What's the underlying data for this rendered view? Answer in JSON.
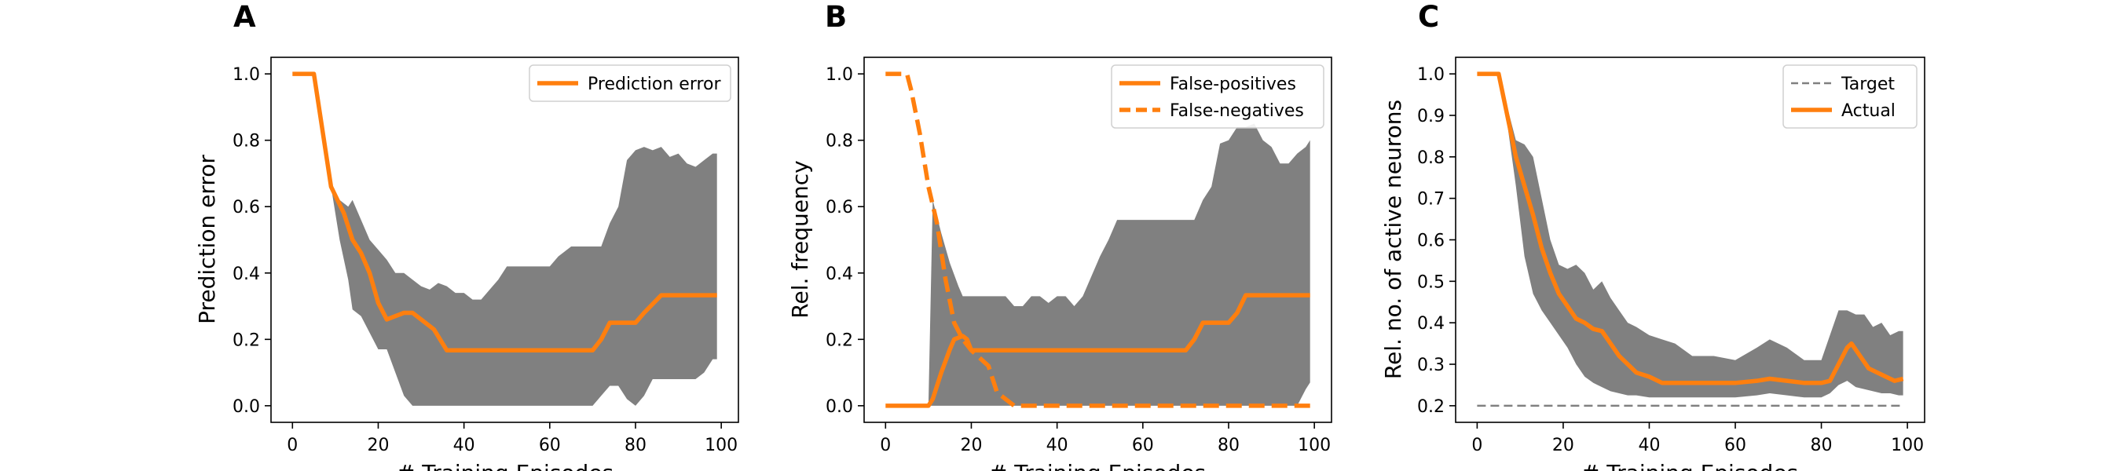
{
  "colors": {
    "series": "#ff7f0e",
    "band": "#808080",
    "target": "#808080",
    "axis": "#000000"
  },
  "chart_data": [
    {
      "panel_letter": "A",
      "type": "line",
      "ylabel": "Prediction error",
      "xlabel": "# Training Episodes",
      "xlim": [
        -5,
        104
      ],
      "ylim": [
        -0.05,
        1.05
      ],
      "xticks": [
        0,
        20,
        40,
        60,
        80,
        100
      ],
      "yticks": [
        0.0,
        0.2,
        0.4,
        0.6,
        0.8,
        1.0
      ],
      "tick_decimals": 1,
      "legend": {
        "position": "upper-right",
        "entries": [
          {
            "label": "Prediction error",
            "style": "solid"
          }
        ]
      },
      "series": [
        {
          "name": "Prediction error",
          "style": "solid",
          "x": [
            0,
            5,
            9,
            12,
            14,
            16,
            18,
            20,
            22,
            24,
            26,
            28,
            30,
            33,
            36,
            40,
            50,
            60,
            70,
            72,
            74,
            76,
            80,
            82,
            86,
            90,
            95,
            99
          ],
          "y": [
            1.0,
            1.0,
            0.66,
            0.58,
            0.5,
            0.46,
            0.4,
            0.31,
            0.26,
            0.27,
            0.28,
            0.28,
            0.26,
            0.23,
            0.167,
            0.167,
            0.167,
            0.167,
            0.167,
            0.2,
            0.25,
            0.25,
            0.25,
            0.28,
            0.333,
            0.333,
            0.333,
            0.333
          ]
        }
      ],
      "band": {
        "x": [
          0,
          5,
          9,
          11,
          13,
          14,
          16,
          18,
          20,
          22,
          24,
          26,
          28,
          30,
          32,
          34,
          36,
          38,
          40,
          42,
          44,
          46,
          48,
          50,
          52,
          54,
          56,
          60,
          62,
          65,
          70,
          72,
          74,
          76,
          78,
          80,
          82,
          84,
          86,
          88,
          90,
          92,
          94,
          96,
          98,
          99
        ],
        "upper": [
          1.0,
          1.0,
          0.66,
          0.62,
          0.6,
          0.62,
          0.56,
          0.5,
          0.47,
          0.44,
          0.4,
          0.4,
          0.38,
          0.36,
          0.35,
          0.37,
          0.36,
          0.34,
          0.34,
          0.32,
          0.32,
          0.35,
          0.38,
          0.42,
          0.42,
          0.42,
          0.42,
          0.42,
          0.45,
          0.48,
          0.48,
          0.48,
          0.55,
          0.6,
          0.74,
          0.77,
          0.78,
          0.77,
          0.78,
          0.75,
          0.76,
          0.73,
          0.72,
          0.74,
          0.76,
          0.76
        ],
        "lower": [
          1.0,
          1.0,
          0.66,
          0.5,
          0.38,
          0.29,
          0.27,
          0.22,
          0.17,
          0.17,
          0.1,
          0.03,
          0.0,
          0.0,
          0.0,
          0.0,
          0.0,
          0.0,
          0.0,
          0.0,
          0.0,
          0.0,
          0.0,
          0.0,
          0.0,
          0.0,
          0.0,
          0.0,
          0.0,
          0.0,
          0.0,
          0.03,
          0.06,
          0.06,
          0.02,
          0.0,
          0.03,
          0.08,
          0.08,
          0.08,
          0.08,
          0.08,
          0.08,
          0.1,
          0.14,
          0.14
        ]
      }
    },
    {
      "panel_letter": "B",
      "type": "line",
      "ylabel": "Rel. frequency",
      "xlabel": "# Training Episodes",
      "xlim": [
        -5,
        104
      ],
      "ylim": [
        -0.05,
        1.05
      ],
      "xticks": [
        0,
        20,
        40,
        60,
        80,
        100
      ],
      "yticks": [
        0.0,
        0.2,
        0.4,
        0.6,
        0.8,
        1.0
      ],
      "tick_decimals": 1,
      "legend": {
        "position": "upper-right",
        "entries": [
          {
            "label": "False-positives",
            "style": "solid"
          },
          {
            "label": "False-negatives",
            "style": "dashed"
          }
        ]
      },
      "series": [
        {
          "name": "False-positives",
          "style": "solid",
          "x": [
            0,
            10,
            11,
            13,
            15,
            16,
            18,
            19,
            20,
            30,
            40,
            60,
            70,
            72,
            74,
            76,
            80,
            82,
            84,
            86,
            90,
            95,
            99
          ],
          "y": [
            0.0,
            0.0,
            0.02,
            0.1,
            0.17,
            0.2,
            0.21,
            0.2,
            0.167,
            0.167,
            0.167,
            0.167,
            0.167,
            0.2,
            0.25,
            0.25,
            0.25,
            0.28,
            0.333,
            0.333,
            0.333,
            0.333,
            0.333
          ]
        },
        {
          "name": "False-negatives",
          "style": "dashed",
          "x": [
            0,
            5,
            6,
            8,
            10,
            12,
            14,
            16,
            18,
            20,
            24,
            26,
            28,
            30,
            32,
            40,
            60,
            80,
            99
          ],
          "y": [
            1.0,
            1.0,
            0.95,
            0.82,
            0.66,
            0.55,
            0.38,
            0.25,
            0.2,
            0.167,
            0.12,
            0.04,
            0.02,
            0.0,
            0.0,
            0.0,
            0.0,
            0.0,
            0.0
          ]
        }
      ],
      "band": {
        "x": [
          0,
          10,
          11,
          13,
          15,
          17,
          18,
          20,
          24,
          26,
          28,
          30,
          32,
          34,
          36,
          38,
          40,
          42,
          44,
          46,
          48,
          50,
          52,
          54,
          56,
          60,
          62,
          65,
          70,
          72,
          74,
          76,
          78,
          80,
          82,
          84,
          86,
          88,
          90,
          92,
          94,
          96,
          98,
          99
        ],
        "upper": [
          0.0,
          0.0,
          0.62,
          0.52,
          0.43,
          0.36,
          0.33,
          0.33,
          0.33,
          0.33,
          0.33,
          0.3,
          0.3,
          0.33,
          0.33,
          0.31,
          0.33,
          0.33,
          0.3,
          0.33,
          0.39,
          0.45,
          0.5,
          0.56,
          0.56,
          0.56,
          0.56,
          0.56,
          0.56,
          0.56,
          0.62,
          0.66,
          0.79,
          0.8,
          0.84,
          0.84,
          0.85,
          0.8,
          0.78,
          0.73,
          0.73,
          0.76,
          0.78,
          0.8
        ],
        "lower": [
          0.0,
          0.0,
          0.0,
          0.0,
          0.0,
          0.0,
          0.0,
          0.0,
          0.0,
          0.0,
          0.0,
          0.0,
          0.0,
          0.0,
          0.0,
          0.0,
          0.0,
          0.0,
          0.0,
          0.0,
          0.0,
          0.0,
          0.0,
          0.0,
          0.0,
          0.0,
          0.0,
          0.0,
          0.0,
          0.0,
          0.0,
          0.0,
          0.0,
          0.0,
          0.0,
          0.0,
          0.0,
          0.0,
          0.0,
          0.0,
          0.0,
          0.0,
          0.05,
          0.07
        ]
      }
    },
    {
      "panel_letter": "C",
      "type": "line",
      "ylabel": "Rel. no. of active neurons",
      "xlabel": "# Training Episodes",
      "xlim": [
        -5,
        104
      ],
      "ylim": [
        0.16,
        1.04
      ],
      "xticks": [
        0,
        20,
        40,
        60,
        80,
        100
      ],
      "yticks": [
        0.2,
        0.3,
        0.4,
        0.5,
        0.6,
        0.7,
        0.8,
        0.9,
        1.0
      ],
      "tick_decimals": 1,
      "legend": {
        "position": "upper-right",
        "entries": [
          {
            "label": "Target",
            "style": "target"
          },
          {
            "label": "Actual",
            "style": "solid"
          }
        ]
      },
      "series": [
        {
          "name": "Target",
          "style": "target",
          "x": [
            0,
            99
          ],
          "y": [
            0.2,
            0.2
          ]
        },
        {
          "name": "Actual",
          "style": "solid",
          "x": [
            0,
            5,
            7,
            9,
            11,
            13,
            15,
            17,
            19,
            21,
            23,
            25,
            27,
            29,
            31,
            33,
            35,
            37,
            40,
            43,
            46,
            50,
            55,
            60,
            65,
            68,
            72,
            76,
            80,
            82,
            84,
            86,
            87,
            89,
            91,
            93,
            95,
            97,
            99
          ],
          "y": [
            1.0,
            1.0,
            0.9,
            0.8,
            0.73,
            0.66,
            0.58,
            0.52,
            0.47,
            0.44,
            0.41,
            0.4,
            0.385,
            0.38,
            0.35,
            0.32,
            0.3,
            0.28,
            0.27,
            0.255,
            0.255,
            0.255,
            0.255,
            0.255,
            0.26,
            0.265,
            0.26,
            0.255,
            0.255,
            0.26,
            0.3,
            0.34,
            0.35,
            0.32,
            0.29,
            0.28,
            0.27,
            0.26,
            0.265
          ]
        }
      ],
      "band": {
        "x": [
          0,
          5,
          7,
          9,
          11,
          13,
          15,
          17,
          19,
          21,
          23,
          25,
          27,
          29,
          31,
          33,
          35,
          37,
          40,
          43,
          46,
          50,
          55,
          60,
          65,
          68,
          72,
          76,
          80,
          82,
          84,
          86,
          88,
          90,
          92,
          94,
          96,
          98,
          99
        ],
        "upper": [
          1.0,
          1.0,
          0.92,
          0.84,
          0.83,
          0.8,
          0.7,
          0.6,
          0.54,
          0.53,
          0.54,
          0.52,
          0.48,
          0.5,
          0.46,
          0.43,
          0.4,
          0.39,
          0.37,
          0.36,
          0.35,
          0.32,
          0.32,
          0.31,
          0.34,
          0.36,
          0.34,
          0.31,
          0.31,
          0.37,
          0.43,
          0.43,
          0.42,
          0.42,
          0.39,
          0.4,
          0.37,
          0.38,
          0.38
        ],
        "lower": [
          1.0,
          1.0,
          0.88,
          0.73,
          0.56,
          0.47,
          0.43,
          0.4,
          0.37,
          0.34,
          0.3,
          0.27,
          0.255,
          0.245,
          0.235,
          0.23,
          0.225,
          0.225,
          0.22,
          0.22,
          0.22,
          0.22,
          0.22,
          0.22,
          0.225,
          0.23,
          0.225,
          0.22,
          0.22,
          0.23,
          0.25,
          0.26,
          0.245,
          0.24,
          0.235,
          0.23,
          0.23,
          0.225,
          0.225
        ]
      }
    }
  ]
}
